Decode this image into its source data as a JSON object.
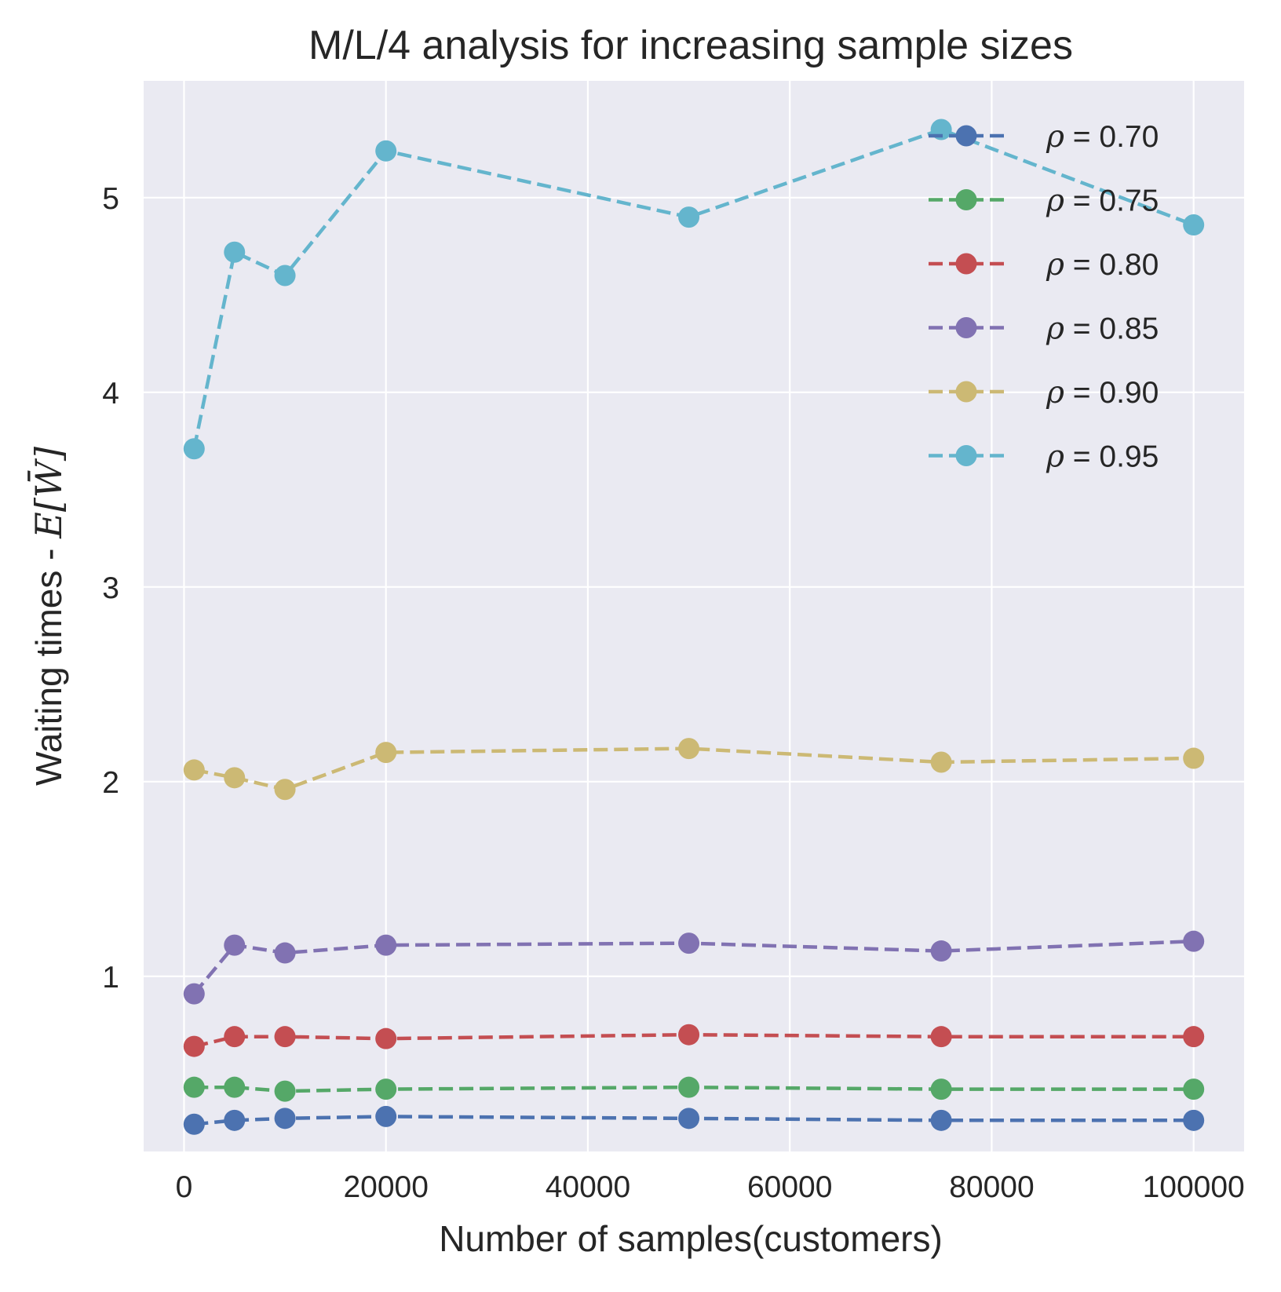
{
  "chart_data": {
    "type": "line",
    "title": "M/L/4 analysis for increasing sample sizes",
    "xlabel": "Number of samples(customers)",
    "ylabel": {
      "prefix": "Waiting times - ",
      "math": "E[W̄]"
    },
    "x": [
      1000,
      5000,
      10000,
      20000,
      50000,
      75000,
      100000
    ],
    "xlim": [
      -4000,
      105000
    ],
    "ylim": [
      0.1,
      5.6
    ],
    "xticks": [
      0,
      20000,
      40000,
      60000,
      80000,
      100000
    ],
    "xtick_labels": [
      "0",
      "20000",
      "40000",
      "60000",
      "80000",
      "100000"
    ],
    "yticks": [
      1,
      2,
      3,
      4,
      5
    ],
    "ytick_labels": [
      "1",
      "2",
      "3",
      "4",
      "5"
    ],
    "grid": true,
    "legend_position": "top-right",
    "line_style": "dashed",
    "marker": "circle",
    "series": [
      {
        "name": "0.70",
        "color": "#4c72b0",
        "values": [
          0.24,
          0.26,
          0.27,
          0.28,
          0.27,
          0.26,
          0.26
        ]
      },
      {
        "name": "0.75",
        "color": "#55a868",
        "values": [
          0.43,
          0.43,
          0.41,
          0.42,
          0.43,
          0.42,
          0.42
        ]
      },
      {
        "name": "0.80",
        "color": "#c44e52",
        "values": [
          0.64,
          0.69,
          0.69,
          0.68,
          0.7,
          0.69,
          0.69
        ]
      },
      {
        "name": "0.85",
        "color": "#8172b2",
        "values": [
          0.91,
          1.16,
          1.12,
          1.16,
          1.17,
          1.13,
          1.18
        ]
      },
      {
        "name": "0.90",
        "color": "#ccb974",
        "values": [
          2.06,
          2.02,
          1.96,
          2.15,
          2.17,
          2.1,
          2.12
        ]
      },
      {
        "name": "0.95",
        "color": "#64b5cd",
        "values": [
          3.71,
          4.72,
          4.6,
          5.24,
          4.9,
          5.35,
          4.86
        ]
      }
    ],
    "legend_symbol": "ρ",
    "legend_equals": " = "
  }
}
